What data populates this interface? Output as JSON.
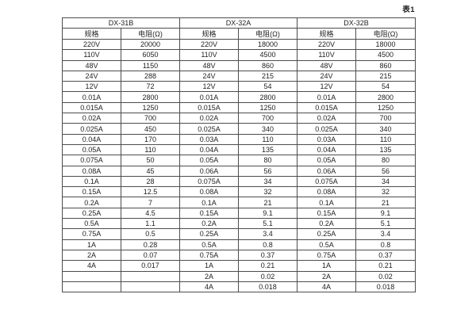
{
  "caption": "表1",
  "table": {
    "groups": [
      {
        "title": "DX-31B",
        "spec_header": "规格",
        "resistance_header": "电阻(Ω)"
      },
      {
        "title": "DX-32A",
        "spec_header": "规格",
        "resistance_header": "电阻(Ω)"
      },
      {
        "title": "DX-32B",
        "spec_header": "规格",
        "resistance_header": "电阻(Ω)"
      }
    ],
    "rows": [
      [
        "220V",
        "20000",
        "220V",
        "18000",
        "220V",
        "18000"
      ],
      [
        "110V",
        "6050",
        "110V",
        "4500",
        "110V",
        "4500"
      ],
      [
        "48V",
        "1150",
        "48V",
        "860",
        "48V",
        "860"
      ],
      [
        "24V",
        "288",
        "24V",
        "215",
        "24V",
        "215"
      ],
      [
        "12V",
        "72",
        "12V",
        "54",
        "12V",
        "54"
      ],
      [
        "0.01A",
        "2800",
        "0.01A",
        "2800",
        "0.01A",
        "2800"
      ],
      [
        "0.015A",
        "1250",
        "0.015A",
        "1250",
        "0.015A",
        "1250"
      ],
      [
        "0.02A",
        "700",
        "0.02A",
        "700",
        "0.02A",
        "700"
      ],
      [
        "0.025A",
        "450",
        "0.025A",
        "340",
        "0.025A",
        "340"
      ],
      [
        "0.04A",
        "170",
        "0.03A",
        "110",
        "0.03A",
        "110"
      ],
      [
        "0.05A",
        "110",
        "0.04A",
        "135",
        "0.04A",
        "135"
      ],
      [
        "0.075A",
        "50",
        "0.05A",
        "80",
        "0.05A",
        "80"
      ],
      [
        "0.08A",
        "45",
        "0.06A",
        "56",
        "0.06A",
        "56"
      ],
      [
        "0.1A",
        "28",
        "0.075A",
        "34",
        "0.075A",
        "34"
      ],
      [
        "0.15A",
        "12.5",
        "0.08A",
        "32",
        "0.08A",
        "32"
      ],
      [
        "0.2A",
        "7",
        "0.1A",
        "21",
        "0.1A",
        "21"
      ],
      [
        "0.25A",
        "4.5",
        "0.15A",
        "9.1",
        "0.15A",
        "9.1"
      ],
      [
        "0.5A",
        "1.1",
        "0.2A",
        "5.1",
        "0.2A",
        "5.1"
      ],
      [
        "0.75A",
        "0.5",
        "0.25A",
        "3.4",
        "0.25A",
        "3.4"
      ],
      [
        "1A",
        "0.28",
        "0.5A",
        "0.8",
        "0.5A",
        "0.8"
      ],
      [
        "2A",
        "0.07",
        "0.75A",
        "0.37",
        "0.75A",
        "0.37"
      ],
      [
        "4A",
        "0.017",
        "1A",
        "0.21",
        "1A",
        "0.21"
      ],
      [
        "",
        "",
        "2A",
        "0.02",
        "2A",
        "0.02"
      ],
      [
        "",
        "",
        "4A",
        "0.018",
        "4A",
        "0.018"
      ]
    ]
  }
}
